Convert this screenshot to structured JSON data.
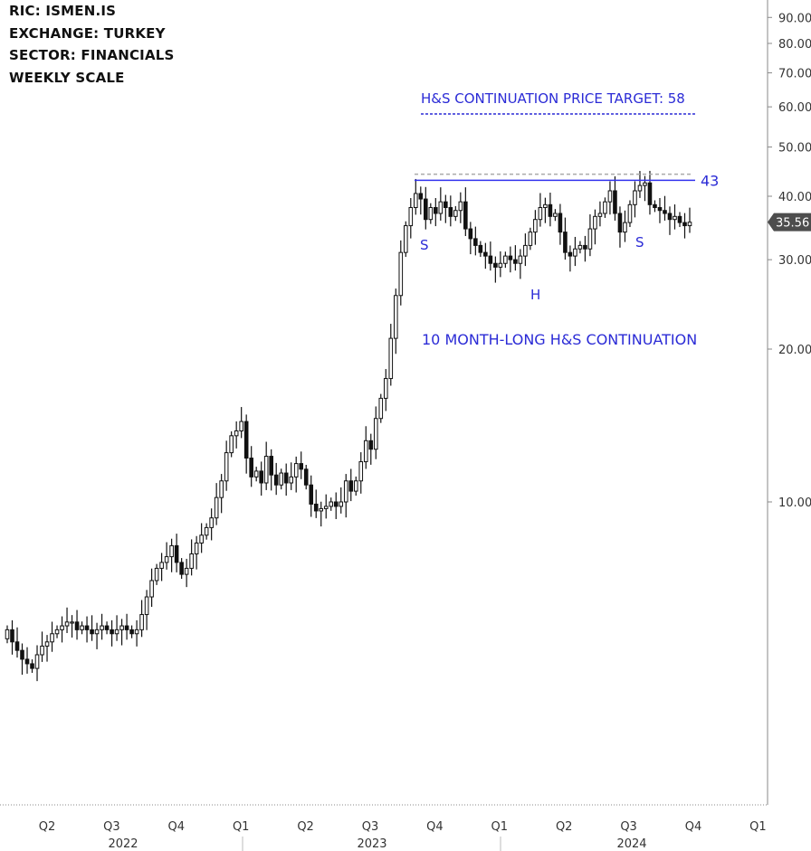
{
  "header": {
    "ric": "RIC:  ISMEN.IS",
    "exchange": "EXCHANGE:  TURKEY",
    "sector": "SECTOR:  FINANCIALS",
    "scale": "WEEKLY SCALE"
  },
  "colors": {
    "annotation": "#2b2bd6",
    "candle": "#111111",
    "price_badge": "#4d4d4d",
    "resistance_line": "#3333ee",
    "dashed_line": "#aaaaaa"
  },
  "chart_data": {
    "type": "candlestick",
    "y_scale": "log",
    "ylim": [
      4.0,
      95.0
    ],
    "y_ticks": [
      {
        "value": 90,
        "label": "90.00"
      },
      {
        "value": 80,
        "label": "80.00"
      },
      {
        "value": 70,
        "label": "70.00"
      },
      {
        "value": 60,
        "label": "60.00"
      },
      {
        "value": 50,
        "label": "50.00"
      },
      {
        "value": 40,
        "label": "40.00"
      },
      {
        "value": 30,
        "label": "30.00"
      },
      {
        "value": 20,
        "label": "20.00"
      },
      {
        "value": 10,
        "label": "10.00"
      }
    ],
    "x_ticks": [
      "Q2",
      "Q3",
      "Q4",
      "Q1",
      "Q2",
      "Q3",
      "Q4",
      "Q1",
      "Q2",
      "Q3",
      "Q4",
      "Q1"
    ],
    "years": [
      "2022",
      "2023",
      "2024"
    ],
    "last_price": {
      "value": 35.56,
      "label": "35.56"
    },
    "resistance": {
      "value": 43,
      "label": "43"
    },
    "price_target": {
      "value": 58,
      "label": "H&S CONTINUATION PRICE TARGET: 58"
    },
    "pattern_labels": {
      "left_shoulder": "S",
      "head": "H",
      "right_shoulder": "S"
    },
    "pattern_title": "10 MONTH-LONG H&S CONTINUATION",
    "close": [
      5.6,
      5.3,
      5.1,
      4.9,
      4.8,
      4.7,
      5.0,
      5.2,
      5.3,
      5.5,
      5.6,
      5.7,
      5.8,
      5.8,
      5.6,
      5.7,
      5.6,
      5.5,
      5.6,
      5.7,
      5.6,
      5.5,
      5.6,
      5.7,
      5.6,
      5.5,
      5.6,
      6.0,
      6.5,
      7.0,
      7.4,
      7.6,
      7.8,
      8.2,
      7.6,
      7.2,
      7.4,
      7.9,
      8.3,
      8.6,
      8.9,
      9.3,
      10.2,
      11.0,
      12.5,
      13.5,
      13.8,
      14.4,
      12.2,
      11.2,
      11.5,
      10.9,
      12.3,
      11.3,
      10.8,
      11.4,
      10.9,
      11.2,
      11.9,
      11.6,
      10.8,
      9.9,
      9.6,
      9.7,
      9.8,
      10.0,
      9.8,
      10.0,
      11.0,
      10.5,
      11.0,
      12.0,
      13.2,
      12.7,
      14.6,
      16.0,
      17.5,
      21.0,
      25.5,
      31.0,
      35.0,
      38.0,
      40.5,
      39.5,
      36.0,
      38.0,
      37.0,
      39.0,
      38.0,
      36.5,
      37.5,
      39.0,
      34.5,
      33.0,
      32.0,
      31.0,
      30.5,
      29.5,
      29.0,
      29.5,
      30.5,
      30.0,
      29.5,
      30.5,
      32.0,
      34.0,
      36.0,
      38.0,
      38.5,
      36.5,
      37.0,
      34.0,
      31.0,
      30.5,
      31.5,
      32.0,
      31.5,
      34.5,
      36.5,
      37.0,
      39.0,
      41.0,
      37.0,
      34.0,
      35.5,
      38.5,
      41.0,
      42.0,
      42.5,
      38.5,
      38.0,
      37.5,
      37.0,
      36.0,
      36.5,
      35.5,
      35.0,
      35.56
    ]
  }
}
